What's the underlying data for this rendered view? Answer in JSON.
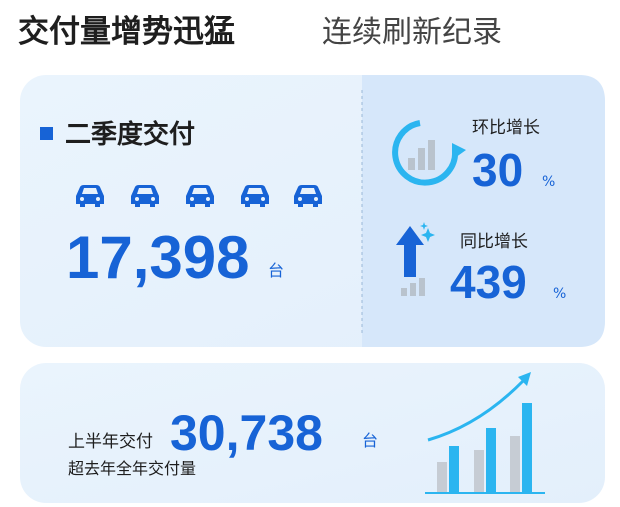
{
  "header": {
    "title": "交付量增势迅猛",
    "subtitle": "连续刷新纪录"
  },
  "quarter": {
    "label": "二季度交付",
    "value": "17,398",
    "unit": "台"
  },
  "mom": {
    "label": "环比增长",
    "value": "30",
    "unit": "%"
  },
  "yoy": {
    "label": "同比增长",
    "value": "439",
    "unit": "%"
  },
  "half_year": {
    "label": "上半年交付",
    "value": "30,738",
    "unit": "台",
    "note": "超去年全年交付量"
  }
}
